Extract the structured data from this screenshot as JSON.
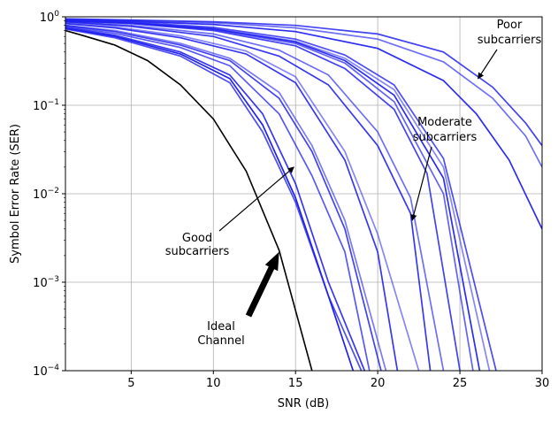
{
  "chart_data": {
    "type": "line",
    "title": "",
    "xlabel": "SNR (dB)",
    "ylabel": "Symbol Error Rate (SER)",
    "xlim": [
      1,
      30
    ],
    "ylim": [
      0.0001,
      1
    ],
    "yscale": "log",
    "grid": true,
    "x_ticks": [
      5,
      10,
      15,
      20,
      25,
      30
    ],
    "x_tick_labels": [
      "5",
      "10",
      "15",
      "20",
      "25",
      "30"
    ],
    "y_ticks": [
      0.0001,
      0.001,
      0.01,
      0.1,
      1
    ],
    "y_tick_labels": [
      {
        "base": "10",
        "exp": "−4"
      },
      {
        "base": "10",
        "exp": "−3"
      },
      {
        "base": "10",
        "exp": "−2"
      },
      {
        "base": "10",
        "exp": "−1"
      },
      {
        "base": "10",
        "exp": "0"
      }
    ],
    "colors": {
      "ideal": "#000000",
      "subcarrier": "#2222ee"
    },
    "ideal_series": {
      "x": [
        1,
        2,
        4,
        6,
        8,
        10,
        12,
        14,
        16
      ],
      "y": [
        0.7,
        0.62,
        0.48,
        0.32,
        0.17,
        0.07,
        0.018,
        0.0023,
        0.0001
      ]
    },
    "subcarrier_series": [
      {
        "opacity": 1.0,
        "x": [
          1,
          4,
          8,
          11,
          13,
          15,
          17,
          18.5
        ],
        "y": [
          0.74,
          0.6,
          0.38,
          0.2,
          0.06,
          0.009,
          0.0007,
          0.0001
        ]
      },
      {
        "opacity": 0.9,
        "x": [
          1,
          4,
          8,
          11,
          13,
          15,
          17,
          19.2
        ],
        "y": [
          0.76,
          0.62,
          0.4,
          0.22,
          0.08,
          0.013,
          0.001,
          0.0001
        ]
      },
      {
        "opacity": 0.8,
        "x": [
          1,
          4,
          8,
          11,
          13,
          15,
          17,
          19
        ],
        "y": [
          0.73,
          0.58,
          0.36,
          0.18,
          0.05,
          0.008,
          0.0007,
          0.0001
        ]
      },
      {
        "opacity": 0.75,
        "x": [
          1,
          4,
          8,
          11,
          14,
          16,
          18,
          19.5
        ],
        "y": [
          0.78,
          0.65,
          0.45,
          0.28,
          0.08,
          0.016,
          0.0022,
          0.0001
        ]
      },
      {
        "opacity": 0.85,
        "x": [
          1,
          4,
          8,
          11,
          14,
          16,
          18,
          20.2
        ],
        "y": [
          0.8,
          0.68,
          0.48,
          0.32,
          0.12,
          0.03,
          0.004,
          0.0001
        ]
      },
      {
        "opacity": 0.6,
        "x": [
          1,
          4,
          8,
          11,
          14,
          16,
          18,
          20.5
        ],
        "y": [
          0.8,
          0.7,
          0.5,
          0.34,
          0.14,
          0.035,
          0.005,
          0.0001
        ]
      },
      {
        "opacity": 0.9,
        "x": [
          1,
          4,
          8,
          12,
          15,
          18,
          20,
          21.2
        ],
        "y": [
          0.84,
          0.75,
          0.58,
          0.38,
          0.18,
          0.024,
          0.0022,
          0.0001
        ]
      },
      {
        "opacity": 0.55,
        "x": [
          1,
          4,
          8,
          12,
          15,
          18,
          20,
          22.5
        ],
        "y": [
          0.85,
          0.77,
          0.61,
          0.41,
          0.21,
          0.03,
          0.0035,
          0.0001
        ]
      },
      {
        "opacity": 0.9,
        "x": [
          1,
          5,
          10,
          14,
          17,
          20,
          22,
          23.2
        ],
        "y": [
          0.88,
          0.78,
          0.6,
          0.36,
          0.17,
          0.035,
          0.006,
          0.0001
        ]
      },
      {
        "opacity": 0.65,
        "x": [
          1,
          5,
          10,
          14,
          17,
          20,
          22,
          24
        ],
        "y": [
          0.88,
          0.8,
          0.64,
          0.42,
          0.22,
          0.05,
          0.009,
          0.0001
        ]
      },
      {
        "opacity": 0.85,
        "x": [
          1,
          5,
          10,
          15,
          18,
          21,
          23,
          25
        ],
        "y": [
          0.9,
          0.84,
          0.7,
          0.47,
          0.26,
          0.09,
          0.017,
          0.0001
        ]
      },
      {
        "opacity": 0.7,
        "x": [
          1,
          5,
          10,
          15,
          18,
          21,
          24,
          25.8
        ],
        "y": [
          0.9,
          0.85,
          0.72,
          0.5,
          0.3,
          0.11,
          0.01,
          0.0001
        ]
      },
      {
        "opacity": 0.95,
        "x": [
          1,
          5,
          10,
          15,
          18,
          21,
          24,
          26.2
        ],
        "y": [
          0.9,
          0.85,
          0.73,
          0.52,
          0.32,
          0.13,
          0.015,
          0.0001
        ]
      },
      {
        "opacity": 0.55,
        "x": [
          1,
          5,
          10,
          15,
          18,
          21,
          24,
          26.8
        ],
        "y": [
          0.91,
          0.86,
          0.74,
          0.53,
          0.34,
          0.15,
          0.02,
          0.0001
        ]
      },
      {
        "opacity": 0.8,
        "x": [
          1,
          5,
          10,
          15,
          18,
          21,
          24,
          27.2
        ],
        "y": [
          0.92,
          0.87,
          0.76,
          0.56,
          0.37,
          0.17,
          0.025,
          0.0001
        ]
      },
      {
        "opacity": 0.65,
        "x": [
          1,
          5,
          10,
          15,
          20,
          24,
          27,
          29,
          30
        ],
        "y": [
          0.94,
          0.91,
          0.86,
          0.75,
          0.56,
          0.31,
          0.12,
          0.045,
          0.02
        ]
      },
      {
        "opacity": 0.85,
        "x": [
          1,
          5,
          10,
          15,
          20,
          24,
          27,
          29,
          30
        ],
        "y": [
          0.95,
          0.92,
          0.88,
          0.8,
          0.64,
          0.4,
          0.16,
          0.063,
          0.035
        ]
      },
      {
        "opacity": 0.95,
        "x": [
          1,
          5,
          10,
          15,
          20,
          24,
          26,
          28,
          30
        ],
        "y": [
          0.92,
          0.89,
          0.82,
          0.68,
          0.44,
          0.19,
          0.08,
          0.024,
          0.004
        ]
      }
    ],
    "annotations": {
      "poor": {
        "lines": [
          "Poor",
          "subcarriers"
        ],
        "arrow_to": [
          26.1,
          0.2
        ]
      },
      "moderate": {
        "lines": [
          "Moderate",
          "subcarriers"
        ],
        "arrow_to": [
          22.1,
          0.005
        ]
      },
      "good": {
        "lines": [
          "Good",
          "subcarriers"
        ],
        "arrow_to": [
          14.9,
          0.02
        ]
      },
      "ideal": {
        "lines": [
          "Ideal",
          "Channel"
        ],
        "arrow_to": [
          14,
          0.0022
        ]
      }
    }
  }
}
